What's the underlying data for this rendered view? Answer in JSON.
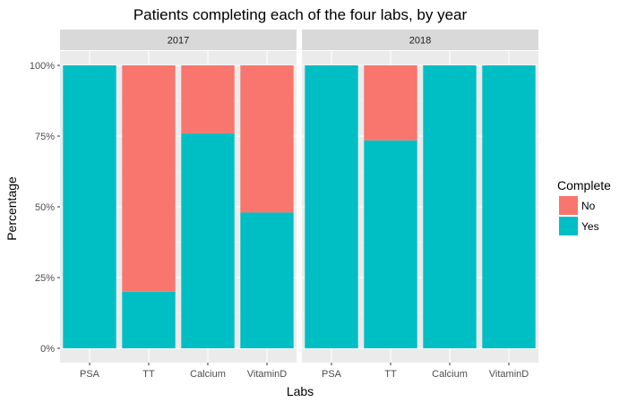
{
  "chart_data": {
    "type": "bar",
    "stacked": true,
    "title": "Patients completing each of the four labs, by year",
    "xlabel": "Labs",
    "ylabel": "Percentage",
    "ylim": [
      0,
      100
    ],
    "yticks": [
      "0%",
      "25%",
      "50%",
      "75%",
      "100%"
    ],
    "ytick_values": [
      0,
      25,
      50,
      75,
      100
    ],
    "categories": [
      "PSA",
      "TT",
      "Calcium",
      "VitaminD"
    ],
    "legend": {
      "title": "Complete",
      "position": "right",
      "entries": [
        {
          "name": "No",
          "color": "#F8766D"
        },
        {
          "name": "Yes",
          "color": "#00BFC4"
        }
      ]
    },
    "facets": [
      {
        "label": "2017",
        "series": [
          {
            "name": "Yes",
            "values": [
              100,
              20,
              76,
              48
            ]
          },
          {
            "name": "No",
            "values": [
              0,
              80,
              24,
              52
            ]
          }
        ]
      },
      {
        "label": "2018",
        "series": [
          {
            "name": "Yes",
            "values": [
              100,
              73.5,
              100,
              100
            ]
          },
          {
            "name": "No",
            "values": [
              0,
              26.5,
              0,
              0
            ]
          }
        ]
      }
    ],
    "grid": true
  }
}
